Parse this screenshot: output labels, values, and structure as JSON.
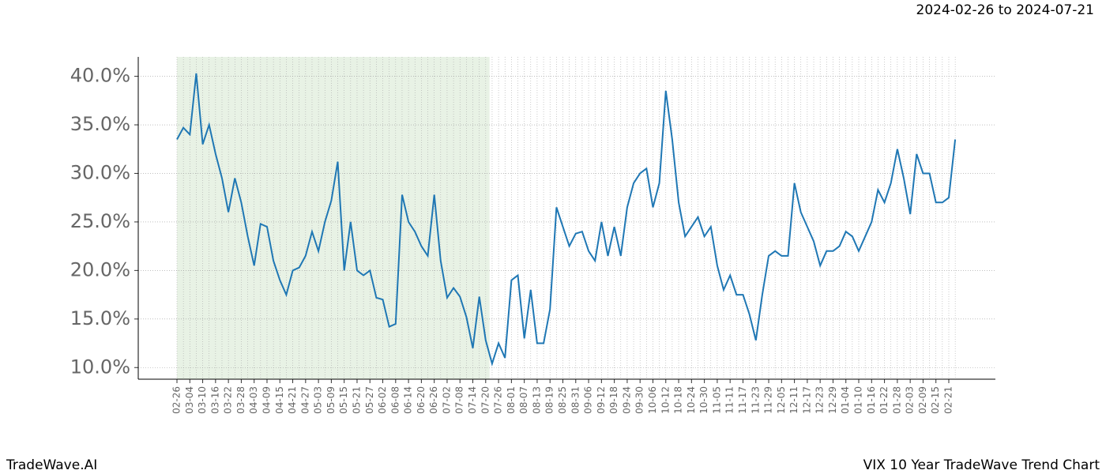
{
  "chart_data": {
    "type": "line",
    "subtitle": "2024-02-26 to 2024-07-21",
    "brand": "TradeWave.AI",
    "title": "VIX 10 Year TradeWave Trend Chart",
    "categories": [
      "02-26",
      null,
      "03-04",
      null,
      "03-10",
      null,
      "03-16",
      null,
      "03-22",
      null,
      "03-28",
      null,
      "04-03",
      null,
      "04-09",
      null,
      "04-15",
      null,
      "04-21",
      null,
      "04-27",
      null,
      "05-03",
      null,
      "05-09",
      null,
      "05-15",
      null,
      "05-21",
      null,
      "05-27",
      null,
      "06-02",
      null,
      "06-08",
      null,
      "06-14",
      null,
      "06-20",
      null,
      "06-26",
      null,
      "07-02",
      null,
      "07-08",
      null,
      "07-14",
      null,
      "07-20",
      null,
      "07-26",
      null,
      "08-01",
      null,
      "08-07",
      null,
      "08-13",
      null,
      "08-19",
      null,
      "08-25",
      null,
      "08-31",
      null,
      "09-06",
      null,
      "09-12",
      null,
      "09-18",
      null,
      "09-24",
      null,
      "09-30",
      null,
      "10-06",
      null,
      "10-12",
      null,
      "10-18",
      null,
      "10-24",
      null,
      "10-30",
      null,
      "11-05",
      null,
      "11-11",
      null,
      "11-17",
      null,
      "11-23",
      null,
      "11-29",
      null,
      "12-05",
      null,
      "12-11",
      null,
      "12-17",
      null,
      "12-23",
      null,
      "12-29",
      null,
      "01-04",
      null,
      "01-10",
      null,
      "01-16",
      null,
      "01-22",
      null,
      "01-28",
      null,
      "02-03",
      null,
      "02-09",
      null,
      "02-15",
      null,
      "02-21",
      null
    ],
    "values": [
      33.5,
      34.7,
      34.0,
      40.3,
      33.0,
      35.0,
      32.0,
      29.5,
      26.0,
      29.5,
      27.0,
      23.5,
      20.5,
      24.8,
      24.5,
      21.0,
      19.0,
      17.5,
      20.0,
      20.3,
      21.5,
      24.0,
      22.0,
      25.0,
      27.2,
      31.2,
      20.0,
      25.0,
      20.0,
      19.5,
      20.0,
      17.2,
      17.0,
      14.2,
      14.5,
      27.8,
      25.0,
      24.0,
      22.5,
      21.5,
      27.8,
      21.0,
      17.2,
      18.2,
      17.3,
      15.2,
      12.0,
      17.3,
      12.8,
      10.4,
      12.5,
      11.0,
      19.0,
      19.5,
      13.0,
      18.0,
      12.5,
      12.5,
      16.0,
      26.5,
      24.5,
      22.5,
      23.8,
      24.0,
      22.0,
      21.0,
      25.0,
      21.5,
      24.5,
      21.5,
      26.5,
      29.0,
      30.0,
      30.5,
      26.5,
      29.0,
      38.5,
      33.5,
      27.0,
      23.5,
      24.5,
      25.5,
      23.5,
      24.5,
      20.5,
      18.0,
      19.5,
      17.5,
      17.5,
      15.5,
      12.8,
      17.5,
      21.5,
      22.0,
      21.5,
      21.5,
      29.0,
      26.0,
      24.5,
      23.0,
      20.5,
      22.0,
      22.0,
      22.5,
      24.0,
      23.5,
      22.0,
      23.5,
      25.0,
      28.3,
      27.0,
      29.0,
      32.5,
      29.5,
      25.8,
      32.0,
      30.0,
      30.0,
      27.0,
      27.0,
      27.5,
      33.5
    ],
    "color": "#1f77b4",
    "shaded_span": {
      "from": "02-26",
      "to": "07-20",
      "color": "#d8ead3"
    },
    "ylim": [
      8.8,
      42.0
    ],
    "yticks": [
      {
        "value": 10,
        "label": "10.0%"
      },
      {
        "value": 15,
        "label": "15.0%"
      },
      {
        "value": 20,
        "label": "20.0%"
      },
      {
        "value": 25,
        "label": "25.0%"
      },
      {
        "value": 30,
        "label": "30.0%"
      },
      {
        "value": 35,
        "label": "35.0%"
      },
      {
        "value": 40,
        "label": "40.0%"
      }
    ],
    "grid": true
  }
}
